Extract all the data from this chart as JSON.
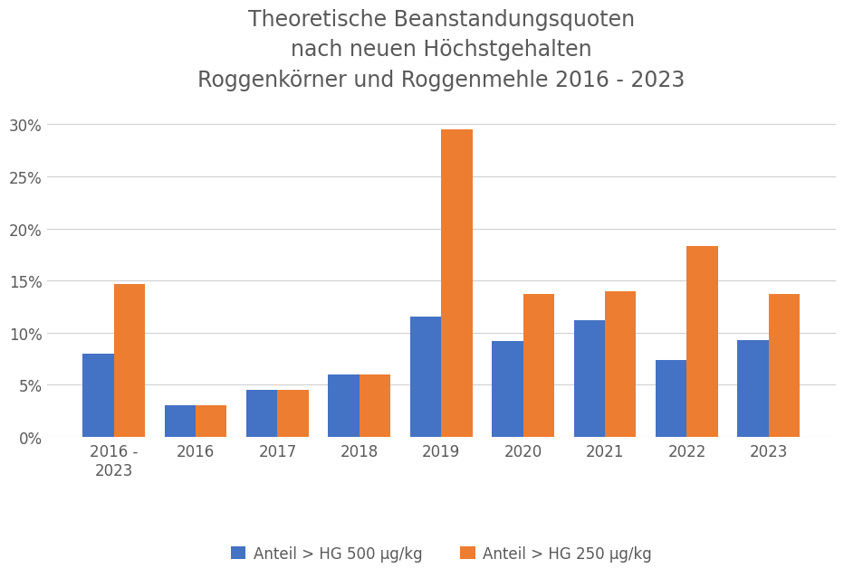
{
  "title": "Theoretische Beanstandungsquoten\nnach neuen Höchstgehalten\nRoggenkörner und Roggenmehle 2016 - 2023",
  "categories": [
    "2016 -\n2023",
    "2016",
    "2017",
    "2018",
    "2019",
    "2020",
    "2021",
    "2022",
    "2023"
  ],
  "series_500": [
    0.08,
    0.03,
    0.045,
    0.06,
    0.115,
    0.092,
    0.112,
    0.074,
    0.093
  ],
  "series_250": [
    0.147,
    0.03,
    0.045,
    0.06,
    0.295,
    0.137,
    0.14,
    0.183,
    0.137
  ],
  "color_500": "#4472C4",
  "color_250": "#ED7D31",
  "legend_500": "Anteil > HG 500 µg/kg",
  "legend_250": "Anteil > HG 250 µg/kg",
  "ylim": [
    0,
    0.32
  ],
  "yticks": [
    0,
    0.05,
    0.1,
    0.15,
    0.2,
    0.25,
    0.3
  ],
  "background_color": "#ffffff",
  "title_color": "#595959",
  "title_fontsize": 17,
  "axis_fontsize": 12,
  "legend_fontsize": 12,
  "bar_width": 0.38,
  "grid_color": "#d0d0d0"
}
